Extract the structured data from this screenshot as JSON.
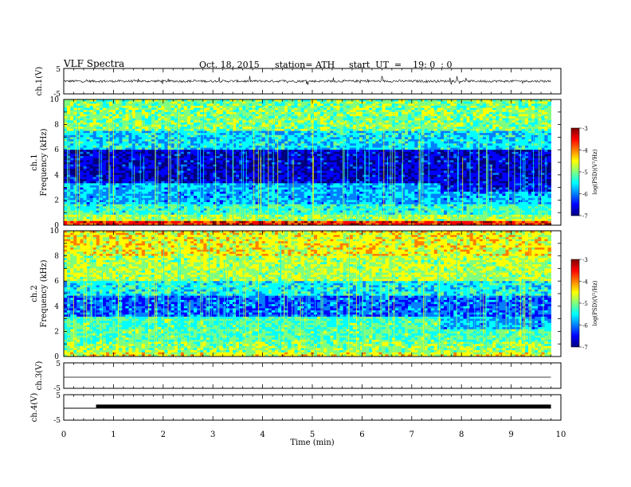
{
  "header": {
    "title": "VLF Spectra",
    "date": "Oct. 18, 2015",
    "station": "station= ATH",
    "start": "start  UT  =    19: 0  : 0"
  },
  "chart_data": [
    {
      "type": "line",
      "name": "ch1-waveform",
      "ylabel": "ch.1(V)",
      "ylim": [
        -5,
        5
      ],
      "y_ticks": [
        "5",
        "-5"
      ],
      "xlim": [
        0,
        10
      ],
      "description_values": {
        "baseline": 0,
        "spike_min": -1.5,
        "spike_max": 2.2
      }
    },
    {
      "type": "heatmap",
      "name": "ch1-spectrogram",
      "ylabel": "ch.1\nFrequency  (kHz)",
      "ylabel_line1": "ch.1",
      "ylabel_line2": "Frequency  (kHz)",
      "ylim": [
        0,
        10
      ],
      "y_ticks": [
        "0",
        "2",
        "4",
        "6",
        "8",
        "10"
      ],
      "xlim": [
        0,
        10
      ],
      "data_end_min": 9.8,
      "colorbar": {
        "label": "log(PSD)(V²/Hz)",
        "ticks": [
          "-3",
          "-4",
          "-5",
          "-6",
          "-7"
        ],
        "range": [
          -7,
          -3
        ]
      }
    },
    {
      "type": "heatmap",
      "name": "ch2-spectrogram",
      "ylabel_line1": "ch.2",
      "ylabel_line2": "Frequency  (kHz)",
      "ylim": [
        0,
        10
      ],
      "y_ticks": [
        "0",
        "2",
        "4",
        "6",
        "8",
        "10"
      ],
      "xlim": [
        0,
        10
      ],
      "data_end_min": 9.8,
      "colorbar": {
        "label": "log(PSD)(V²/Hz)",
        "ticks": [
          "-3",
          "-4",
          "-5",
          "-6",
          "-7"
        ],
        "range": [
          -7,
          -3
        ]
      }
    },
    {
      "type": "line",
      "name": "ch3-waveform",
      "ylabel": "ch.3(V)",
      "ylim": [
        -5,
        5
      ],
      "y_ticks": [
        "5",
        "-5"
      ],
      "xlim": [
        0,
        10
      ],
      "level": 0
    },
    {
      "type": "line",
      "name": "ch4-waveform",
      "ylabel": "ch.4(V)",
      "ylim": [
        -5,
        5
      ],
      "y_ticks": [
        "5",
        "-5",
        "5",
        "-5"
      ],
      "xlim": [
        0,
        10
      ],
      "level_low": 0,
      "level_high": 0.5,
      "high_start_min": 0.65
    }
  ],
  "x_axis": {
    "label": "Time  (min)",
    "ticks": [
      "0",
      "1",
      "2",
      "3",
      "4",
      "5",
      "6",
      "7",
      "8",
      "9",
      "10"
    ]
  },
  "colors": {
    "jet": [
      "#00007f",
      "#0000ff",
      "#007fff",
      "#00ffff",
      "#7fff7f",
      "#ffff00",
      "#ff7f00",
      "#ff0000",
      "#7f0000"
    ]
  }
}
